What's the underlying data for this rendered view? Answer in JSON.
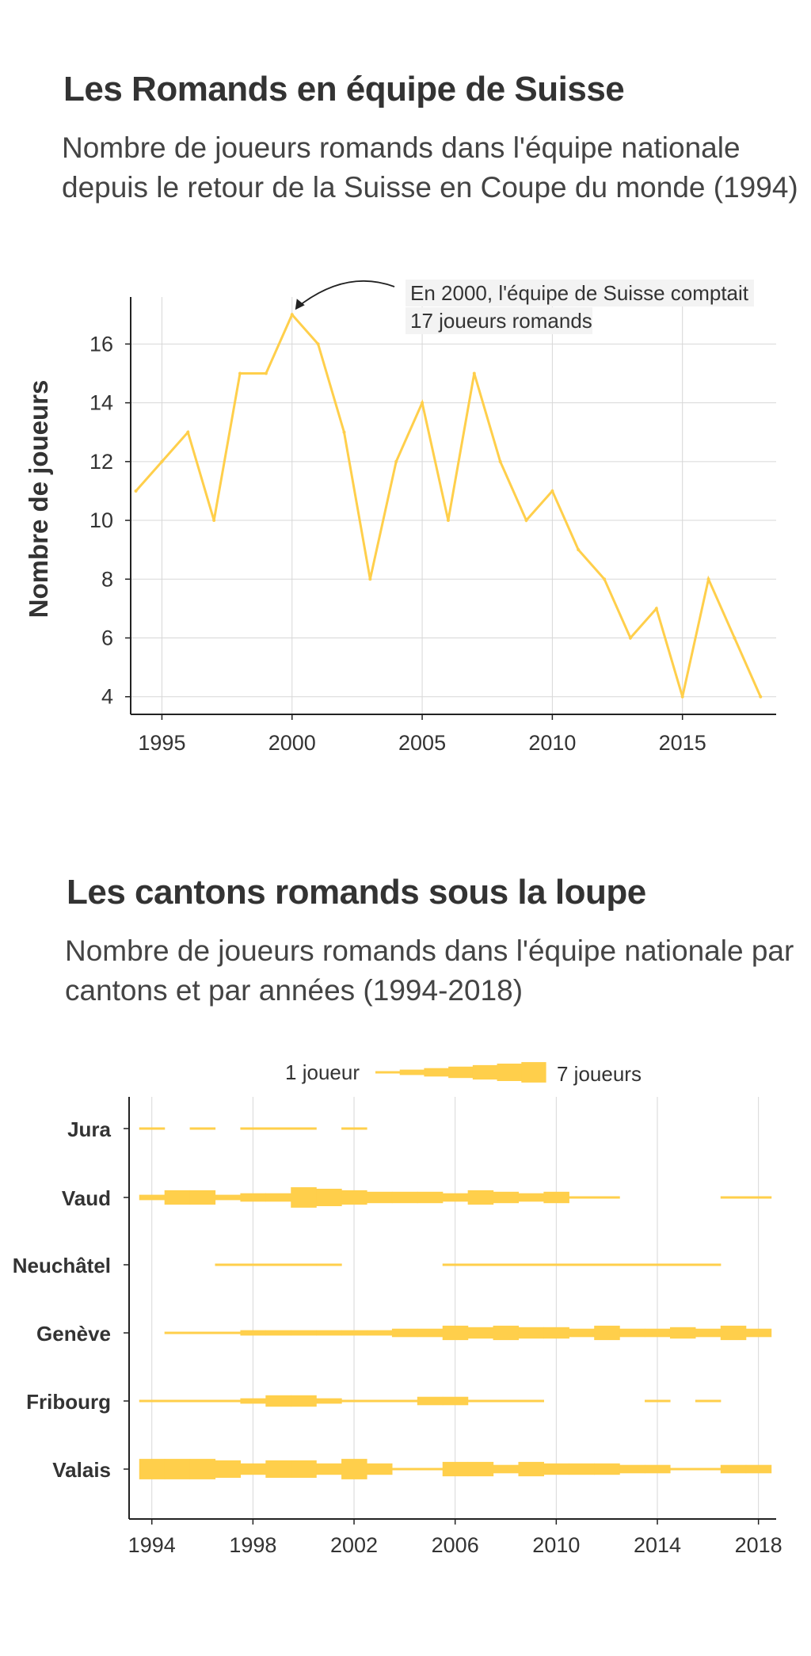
{
  "colors": {
    "line": "#FFCF4B",
    "grid": "#d7d7d7",
    "axis": "#222222",
    "text": "#333333"
  },
  "chart_data": [
    {
      "type": "line",
      "title": "Les Romands en équipe de Suisse",
      "subtitle": "Nombre de joueurs romands dans l'équipe nationale depuis le retour de la Suisse en Coupe du monde (1994)",
      "ylabel": "Nombre de joueurs",
      "xlabel": "",
      "x": [
        1994,
        1995,
        1996,
        1997,
        1998,
        1999,
        2000,
        2001,
        2002,
        2003,
        2004,
        2005,
        2006,
        2007,
        2008,
        2009,
        2010,
        2011,
        2012,
        2013,
        2014,
        2015,
        2016,
        2017,
        2018
      ],
      "values": [
        11,
        12,
        13,
        10,
        15,
        15,
        17,
        16,
        13,
        8,
        12,
        14,
        10,
        15,
        12,
        10,
        11,
        9,
        8,
        6,
        7,
        4,
        8,
        6,
        4
      ],
      "x_ticks": [
        1995,
        2000,
        2005,
        2010,
        2015
      ],
      "y_ticks": [
        4,
        6,
        8,
        10,
        12,
        14,
        16
      ],
      "xlim": [
        1993.8,
        2018.6
      ],
      "ylim": [
        3.4,
        17.6
      ],
      "grid": true,
      "annotation": {
        "x": 2000,
        "y": 17,
        "text_lines": [
          "En 2000, l'équipe de Suisse comptait",
          "17 joueurs romands"
        ]
      }
    },
    {
      "type": "line",
      "title": "Les cantons romands sous la loupe",
      "subtitle": "Nombre de joueurs romands dans l'équipe nationale par cantons et par années (1994-2018)",
      "legend": {
        "min_label": "1 joueur",
        "max_label": "7 joueurs",
        "position": "top"
      },
      "x_ticks": [
        1994,
        1998,
        2002,
        2006,
        2010,
        2014,
        2018
      ],
      "xlim": [
        1993.1,
        2018.7
      ],
      "grid": true,
      "years": [
        1994,
        1995,
        1996,
        1997,
        1998,
        1999,
        2000,
        2001,
        2002,
        2003,
        2004,
        2005,
        2006,
        2007,
        2008,
        2009,
        2010,
        2011,
        2012,
        2013,
        2014,
        2015,
        2016,
        2017,
        2018
      ],
      "series": [
        {
          "name": "Jura",
          "values": [
            1,
            0,
            1,
            0,
            1,
            1,
            1,
            0,
            1,
            0,
            0,
            0,
            0,
            0,
            0,
            0,
            0,
            0,
            0,
            0,
            0,
            0,
            0,
            0,
            0
          ]
        },
        {
          "name": "Vaud",
          "values": [
            2,
            5,
            5,
            2,
            3,
            3,
            7,
            6,
            5,
            4,
            4,
            4,
            3,
            5,
            4,
            3,
            4,
            1,
            1,
            0,
            0,
            0,
            0,
            1,
            1
          ]
        },
        {
          "name": "Neuchâtel",
          "values": [
            0,
            0,
            0,
            1,
            1,
            1,
            1,
            1,
            0,
            0,
            0,
            0,
            1,
            1,
            1,
            1,
            1,
            1,
            1,
            1,
            1,
            1,
            1,
            0,
            0
          ]
        },
        {
          "name": "Genève",
          "values": [
            0,
            1,
            1,
            1,
            2,
            2,
            2,
            2,
            2,
            2,
            3,
            3,
            5,
            4,
            5,
            4,
            4,
            3,
            5,
            3,
            3,
            4,
            3,
            5,
            3
          ]
        },
        {
          "name": "Fribourg",
          "values": [
            1,
            1,
            1,
            1,
            2,
            4,
            4,
            2,
            1,
            1,
            1,
            3,
            3,
            1,
            1,
            1,
            0,
            0,
            0,
            0,
            1,
            0,
            1,
            0,
            0
          ]
        },
        {
          "name": "Valais",
          "values": [
            7,
            7,
            7,
            6,
            4,
            6,
            6,
            4,
            7,
            4,
            1,
            1,
            5,
            5,
            3,
            5,
            4,
            4,
            4,
            3,
            3,
            1,
            1,
            3,
            3
          ]
        }
      ]
    }
  ]
}
